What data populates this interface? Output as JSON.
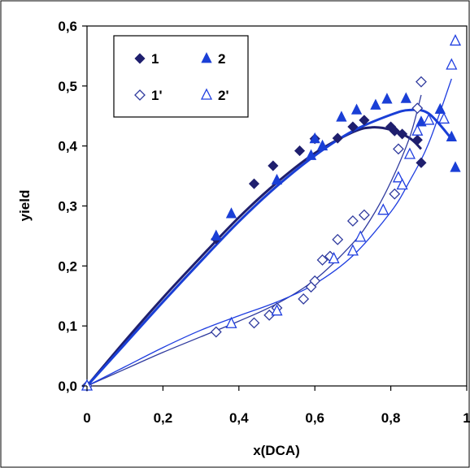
{
  "chart_data": {
    "type": "scatter",
    "title": "",
    "xlabel": "x(DCA)",
    "ylabel": "yield",
    "xlim": [
      0,
      1
    ],
    "ylim": [
      0,
      0.6
    ],
    "x_ticks": [
      "0",
      "0,2",
      "0,4",
      "0,6",
      "0,8",
      "1"
    ],
    "y_ticks": [
      "0,0",
      "0,1",
      "0,2",
      "0,3",
      "0,4",
      "0,5",
      "0,6"
    ],
    "grid": false,
    "legend_position": "top-left",
    "colors": {
      "series_1": "#1f1f6e",
      "series_2": "#1a3fd6",
      "series_1p": "#2f3a9e",
      "series_2p": "#1f3ee0"
    },
    "series": [
      {
        "name": "1",
        "marker": "filled-diamond",
        "color": "#1f1f6e",
        "points": [
          [
            0,
            0
          ],
          [
            0.34,
            0.245
          ],
          [
            0.44,
            0.337
          ],
          [
            0.49,
            0.367
          ],
          [
            0.56,
            0.392
          ],
          [
            0.6,
            0.412
          ],
          [
            0.66,
            0.413
          ],
          [
            0.7,
            0.432
          ],
          [
            0.73,
            0.443
          ],
          [
            0.8,
            0.432
          ],
          [
            0.81,
            0.425
          ],
          [
            0.83,
            0.42
          ],
          [
            0.87,
            0.41
          ],
          [
            0.88,
            0.372
          ]
        ],
        "fit": [
          [
            0,
            0
          ],
          [
            0.1,
            0.075
          ],
          [
            0.2,
            0.147
          ],
          [
            0.3,
            0.215
          ],
          [
            0.4,
            0.281
          ],
          [
            0.5,
            0.339
          ],
          [
            0.6,
            0.388
          ],
          [
            0.7,
            0.423
          ],
          [
            0.75,
            0.431
          ],
          [
            0.8,
            0.427
          ],
          [
            0.85,
            0.413
          ],
          [
            0.88,
            0.395
          ]
        ]
      },
      {
        "name": "2",
        "marker": "filled-triangle",
        "color": "#1a3fd6",
        "points": [
          [
            0,
            0
          ],
          [
            0.34,
            0.25
          ],
          [
            0.38,
            0.287
          ],
          [
            0.5,
            0.343
          ],
          [
            0.59,
            0.384
          ],
          [
            0.6,
            0.412
          ],
          [
            0.62,
            0.4
          ],
          [
            0.67,
            0.448
          ],
          [
            0.71,
            0.46
          ],
          [
            0.76,
            0.468
          ],
          [
            0.79,
            0.478
          ],
          [
            0.84,
            0.479
          ],
          [
            0.88,
            0.44
          ],
          [
            0.93,
            0.461
          ],
          [
            0.96,
            0.415
          ],
          [
            0.97,
            0.364
          ]
        ],
        "fit": [
          [
            0,
            0
          ],
          [
            0.1,
            0.07
          ],
          [
            0.2,
            0.14
          ],
          [
            0.3,
            0.208
          ],
          [
            0.4,
            0.274
          ],
          [
            0.5,
            0.333
          ],
          [
            0.6,
            0.384
          ],
          [
            0.7,
            0.425
          ],
          [
            0.8,
            0.452
          ],
          [
            0.85,
            0.46
          ],
          [
            0.9,
            0.454
          ],
          [
            0.96,
            0.412
          ]
        ]
      },
      {
        "name": "1'",
        "marker": "open-diamond",
        "color": "#2f3a9e",
        "points": [
          [
            0,
            0
          ],
          [
            0.34,
            0.09
          ],
          [
            0.44,
            0.105
          ],
          [
            0.48,
            0.118
          ],
          [
            0.5,
            0.13
          ],
          [
            0.57,
            0.145
          ],
          [
            0.59,
            0.165
          ],
          [
            0.6,
            0.175
          ],
          [
            0.62,
            0.21
          ],
          [
            0.64,
            0.216
          ],
          [
            0.66,
            0.244
          ],
          [
            0.7,
            0.275
          ],
          [
            0.73,
            0.285
          ],
          [
            0.81,
            0.32
          ],
          [
            0.82,
            0.395
          ],
          [
            0.87,
            0.463
          ],
          [
            0.88,
            0.507
          ]
        ],
        "fit": [
          [
            0,
            0
          ],
          [
            0.1,
            0.028
          ],
          [
            0.2,
            0.056
          ],
          [
            0.3,
            0.082
          ],
          [
            0.4,
            0.108
          ],
          [
            0.5,
            0.137
          ],
          [
            0.6,
            0.177
          ],
          [
            0.7,
            0.238
          ],
          [
            0.75,
            0.281
          ],
          [
            0.8,
            0.34
          ],
          [
            0.85,
            0.415
          ],
          [
            0.88,
            0.485
          ]
        ]
      },
      {
        "name": "2'",
        "marker": "open-triangle",
        "color": "#1f3ee0",
        "points": [
          [
            0,
            0
          ],
          [
            0.38,
            0.104
          ],
          [
            0.5,
            0.125
          ],
          [
            0.65,
            0.212
          ],
          [
            0.7,
            0.225
          ],
          [
            0.72,
            0.248
          ],
          [
            0.78,
            0.293
          ],
          [
            0.82,
            0.347
          ],
          [
            0.83,
            0.335
          ],
          [
            0.85,
            0.386
          ],
          [
            0.87,
            0.425
          ],
          [
            0.9,
            0.443
          ],
          [
            0.94,
            0.445
          ],
          [
            0.96,
            0.535
          ],
          [
            0.97,
            0.575
          ]
        ],
        "fit": [
          [
            0,
            0
          ],
          [
            0.1,
            0.032
          ],
          [
            0.2,
            0.064
          ],
          [
            0.3,
            0.093
          ],
          [
            0.4,
            0.117
          ],
          [
            0.5,
            0.14
          ],
          [
            0.6,
            0.17
          ],
          [
            0.7,
            0.217
          ],
          [
            0.8,
            0.29
          ],
          [
            0.85,
            0.342
          ],
          [
            0.9,
            0.405
          ],
          [
            0.96,
            0.512
          ]
        ]
      }
    ]
  }
}
